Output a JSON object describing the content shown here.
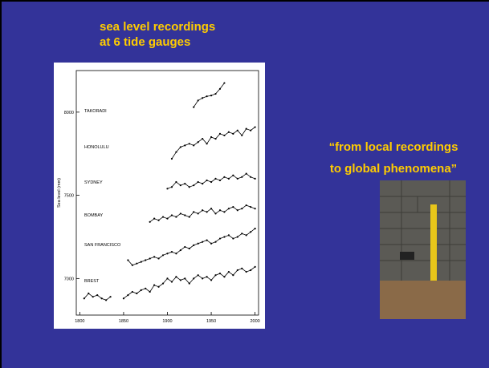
{
  "title": [
    "sea level recordings",
    "at 6 tide gauges"
  ],
  "caption": [
    "“from local recordings",
    "to global phenomena”"
  ],
  "chart_data": {
    "type": "line",
    "ylabel": "Sea level (mm)",
    "x": [
      1805,
      1810,
      1815,
      1820,
      1825,
      1830,
      1835,
      1840,
      1845,
      1850,
      1855,
      1860,
      1865,
      1870,
      1875,
      1880,
      1885,
      1890,
      1895,
      1900,
      1905,
      1910,
      1915,
      1920,
      1925,
      1930,
      1935,
      1940,
      1945,
      1950,
      1955,
      1960,
      1965,
      1970,
      1975,
      1980,
      1985,
      1990,
      1995,
      2000
    ],
    "series": [
      {
        "name": "TAKORADI",
        "color": "#000000",
        "values": [
          null,
          null,
          null,
          null,
          null,
          null,
          null,
          null,
          null,
          null,
          null,
          null,
          null,
          null,
          null,
          null,
          null,
          null,
          null,
          null,
          null,
          null,
          null,
          null,
          null,
          8030,
          8070,
          8085,
          8095,
          8100,
          8110,
          8140,
          8175,
          null,
          null,
          null,
          null,
          null,
          null,
          null
        ]
      },
      {
        "name": "HONOLULU",
        "color": "#000000",
        "values": [
          null,
          null,
          null,
          null,
          null,
          null,
          null,
          null,
          null,
          null,
          null,
          null,
          null,
          null,
          null,
          null,
          null,
          null,
          null,
          null,
          7720,
          7760,
          7790,
          7800,
          7810,
          7800,
          7820,
          7840,
          7810,
          7850,
          7840,
          7870,
          7860,
          7880,
          7870,
          7890,
          7860,
          7900,
          7890,
          7910
        ]
      },
      {
        "name": "SYDNEY",
        "color": "#000000",
        "values": [
          null,
          null,
          null,
          null,
          null,
          null,
          null,
          null,
          null,
          null,
          null,
          null,
          null,
          null,
          null,
          null,
          null,
          null,
          null,
          7540,
          7550,
          7580,
          7560,
          7570,
          7550,
          7560,
          7580,
          7570,
          7590,
          7580,
          7600,
          7590,
          7610,
          7600,
          7620,
          7600,
          7610,
          7630,
          7610,
          7600
        ]
      },
      {
        "name": "BOMBAY",
        "color": "#000000",
        "values": [
          null,
          null,
          null,
          null,
          null,
          null,
          null,
          null,
          null,
          null,
          null,
          null,
          null,
          null,
          null,
          7340,
          7360,
          7350,
          7370,
          7360,
          7380,
          7370,
          7390,
          7380,
          7370,
          7400,
          7390,
          7410,
          7400,
          7420,
          7390,
          7410,
          7400,
          7420,
          7430,
          7410,
          7420,
          7440,
          7430,
          7420
        ]
      },
      {
        "name": "SAN FRANCISCO",
        "color": "#000000",
        "values": [
          null,
          null,
          null,
          null,
          null,
          null,
          null,
          null,
          null,
          null,
          7110,
          7080,
          7090,
          7100,
          7110,
          7120,
          7130,
          7120,
          7140,
          7150,
          7160,
          7150,
          7170,
          7190,
          7180,
          7200,
          7210,
          7220,
          7230,
          7210,
          7220,
          7240,
          7250,
          7260,
          7240,
          7250,
          7270,
          7260,
          7280,
          7300
        ]
      },
      {
        "name": "BREST",
        "color": "#000000",
        "values": [
          6880,
          6910,
          6890,
          6900,
          6880,
          6870,
          6890,
          null,
          null,
          6880,
          6900,
          6920,
          6910,
          6930,
          6940,
          6920,
          6960,
          6950,
          6970,
          7000,
          6980,
          7010,
          6990,
          7000,
          6970,
          7000,
          7020,
          7000,
          7010,
          6990,
          7020,
          7030,
          7010,
          7040,
          7020,
          7050,
          7060,
          7040,
          7050,
          7070
        ]
      }
    ],
    "xlim": [
      1796,
      2004
    ],
    "ylim": [
      6780,
      8250
    ],
    "xticks": [
      1800,
      1850,
      1900,
      1950,
      2000
    ],
    "yticks": [
      7000,
      7500,
      8000
    ]
  }
}
